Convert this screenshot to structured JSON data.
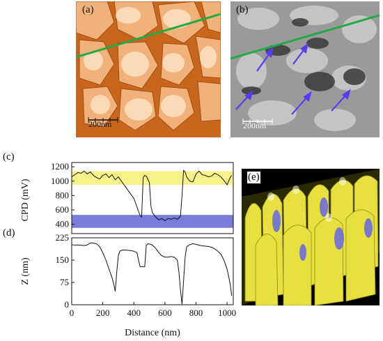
{
  "panels": {
    "a": {
      "label": "(a)",
      "scalebar": "200nm"
    },
    "b": {
      "label": "(b)",
      "scalebar": "200nm"
    },
    "c": {
      "label": "(c)"
    },
    "d": {
      "label": "(d)"
    },
    "e": {
      "label": "(e)"
    }
  },
  "colors": {
    "line_scan": "#22aa44",
    "arrow": "#5a3cf0",
    "cpd_high_band": "#f7f28a",
    "cpd_low_band": "#7b7bdc",
    "afm_bg": "#c8641c"
  },
  "chart_data": [
    {
      "type": "line",
      "panel": "c",
      "xlabel": "",
      "ylabel": "CPD (mV)",
      "xlim": [
        0,
        1040
      ],
      "ylim": [
        270,
        1260
      ],
      "yticks": [
        400,
        600,
        800,
        1000,
        1200
      ],
      "bands": [
        {
          "from": 950,
          "to": 1140,
          "color": "yellow"
        },
        {
          "from": 350,
          "to": 530,
          "color": "blue"
        }
      ],
      "x": [
        0,
        20,
        40,
        60,
        80,
        100,
        120,
        140,
        160,
        180,
        200,
        220,
        240,
        260,
        280,
        300,
        320,
        340,
        360,
        380,
        400,
        420,
        440,
        450,
        460,
        470,
        480,
        500,
        510,
        520,
        540,
        560,
        580,
        600,
        620,
        640,
        660,
        680,
        700,
        710,
        720,
        730,
        740,
        760,
        780,
        800,
        820,
        840,
        860,
        880,
        900,
        920,
        940,
        960,
        980,
        1000,
        1020,
        1030
      ],
      "y": [
        1060,
        1090,
        1120,
        1110,
        1140,
        1100,
        1130,
        1080,
        1050,
        1030,
        1080,
        1100,
        1050,
        1090,
        1020,
        1060,
        1000,
        940,
        880,
        820,
        760,
        640,
        520,
        500,
        1050,
        1080,
        1070,
        980,
        650,
        560,
        500,
        460,
        480,
        450,
        480,
        470,
        490,
        470,
        510,
        800,
        1150,
        1130,
        1060,
        1000,
        990,
        1100,
        1140,
        1090,
        1080,
        1060,
        1070,
        1110,
        1090,
        1060,
        1010,
        950,
        1050,
        1080
      ],
      "annotations": []
    },
    {
      "type": "line",
      "panel": "d",
      "xlabel": "Distance (nm)",
      "ylabel": "Z (nm)",
      "xlim": [
        0,
        1040
      ],
      "ylim": [
        0,
        225
      ],
      "xticks": [
        0,
        200,
        400,
        600,
        800,
        1000
      ],
      "yticks": [
        0,
        75,
        150,
        225
      ],
      "x": [
        0,
        20,
        40,
        60,
        80,
        100,
        120,
        140,
        160,
        180,
        200,
        220,
        240,
        260,
        270,
        280,
        290,
        300,
        310,
        320,
        340,
        360,
        380,
        400,
        420,
        430,
        440,
        450,
        460,
        470,
        480,
        490,
        500,
        510,
        520,
        540,
        560,
        580,
        600,
        620,
        640,
        660,
        680,
        690,
        700,
        710,
        720,
        730,
        740,
        760,
        780,
        800,
        820,
        840,
        860,
        880,
        900,
        920,
        940,
        960,
        980,
        1000,
        1020,
        1030
      ],
      "y": [
        202,
        200,
        201,
        200,
        199,
        201,
        208,
        207,
        205,
        195,
        175,
        150,
        120,
        90,
        70,
        45,
        110,
        165,
        180,
        183,
        184,
        183,
        182,
        180,
        175,
        150,
        128,
        128,
        128,
        128,
        200,
        205,
        204,
        203,
        200,
        190,
        175,
        165,
        160,
        160,
        162,
        160,
        150,
        110,
        50,
        2,
        80,
        160,
        195,
        202,
        205,
        203,
        200,
        198,
        197,
        196,
        193,
        188,
        180,
        170,
        150,
        120,
        70,
        30
      ],
      "annotations": []
    }
  ]
}
